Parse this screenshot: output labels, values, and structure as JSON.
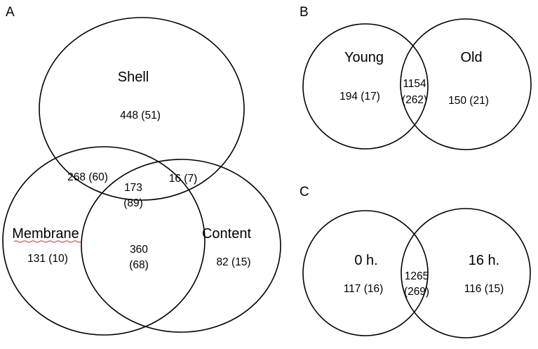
{
  "panels": {
    "a": {
      "letter": "A",
      "labels": {
        "shell": "Shell",
        "membrane": "Membrane",
        "content": "Content"
      },
      "counts": {
        "shell_only": "448 (51)",
        "shell_membrane": "268 (60)",
        "shell_content": "16 (7)",
        "all_three_line1": "173",
        "all_three_line2": "(89)",
        "membrane_only": "131 (10)",
        "membrane_content_line1": "360",
        "membrane_content_line2": "(68)",
        "content_only": "82 (15)"
      }
    },
    "b": {
      "letter": "B",
      "labels": {
        "young": "Young",
        "old": "Old"
      },
      "counts": {
        "young_only": "194 (17)",
        "overlap_line1": "1154",
        "overlap_line2": "(262)",
        "old_only": "150 (21)"
      }
    },
    "c": {
      "letter": "C",
      "labels": {
        "h0": "0 h.",
        "h16": "16 h."
      },
      "counts": {
        "h0_only": "117 (16)",
        "overlap_line1": "1265",
        "overlap_line2": "(269)",
        "h16_only": "116 (15)"
      }
    }
  },
  "colors": {
    "stroke": "#000000",
    "spellcheck": "#dd2222"
  }
}
